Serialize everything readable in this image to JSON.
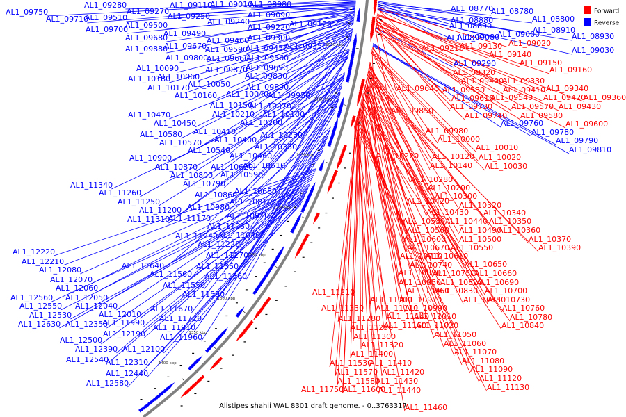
{
  "title": "Alistipes shahii WAL 8301 draft genome. - 0..3763317",
  "legend": [
    {
      "label": "Forward",
      "color": "#ff0000"
    },
    {
      "label": "Reverse",
      "color": "#0000ff"
    }
  ],
  "colors": {
    "forward": "#ff0000",
    "reverse": "#0000ff",
    "backbone": "#808080"
  },
  "ticks": [
    "1050 kbp",
    "1100 kbp",
    "1150 kbp",
    "1200 kbp",
    "1250 kbp",
    "1300 kbp",
    "1350 kbp",
    "1400 kbp"
  ],
  "reverse_labels": [
    "AL1_09750",
    "AL1_09710",
    "AL1_09280",
    "AL1_09270",
    "AL1_09110",
    "AL1_09010",
    "AL1_09510",
    "AL1_09250",
    "AL1_09240",
    "AL1_09220",
    "AL1_09090",
    "AL1_08980",
    "AL1_09120",
    "AL1_09700",
    "AL1_09500",
    "AL1_09490",
    "AL1_09300",
    "AL1_09680",
    "AL1_09460",
    "AL1_09350",
    "AL1_09880",
    "AL1_09670",
    "AL1_09590",
    "AL1_09450",
    "AL1_09800",
    "AL1_09660",
    "AL1_09560",
    "AL1_09870",
    "AL1_09690",
    "AL1_10090",
    "AL1_09830",
    "AL1_10180",
    "AL1_10060",
    "AL1_09890",
    "AL1_10170",
    "AL1_10050",
    "AL1_10040",
    "AL1_09950",
    "AL1_10160",
    "AL1_10150",
    "AL1_10070",
    "AL1_10210",
    "AL1_10100",
    "AL1_10470",
    "AL1_10200",
    "AL1_10450",
    "AL1_10410",
    "AL1_10580",
    "AL1_10230",
    "AL1_10400",
    "AL1_10570",
    "AL1_10330",
    "AL1_10540",
    "AL1_10460",
    "AL1_10900",
    "AL1_10620",
    "AL1_10510",
    "AL1_10870",
    "AL1_10800",
    "AL1_10590",
    "AL1_10790",
    "AL1_11340",
    "AL1_10680",
    "AL1_11260",
    "AL1_10860",
    "AL1_10810",
    "AL1_11250",
    "AL1_11200",
    "AL1_10980",
    "AL1_10910",
    "AL1_11310",
    "AL1_11170",
    "AL1_11030",
    "AL1_11040",
    "AL1_11240",
    "AL1_11220",
    "AL1_11270",
    "AL1_12220",
    "AL1_12210",
    "AL1_11640",
    "AL1_11350",
    "AL1_12080",
    "AL1_11560",
    "AL1_11360",
    "AL1_12070",
    "AL1_11550",
    "AL1_12060",
    "AL1_11590",
    "AL1_12050",
    "AL1_12560",
    "AL1_12040",
    "AL1_11670",
    "AL1_12550",
    "AL1_11720",
    "AL1_12530",
    "AL1_12010",
    "AL1_11990",
    "AL1_12630",
    "AL1_12350",
    "AL1_11910",
    "AL1_12190",
    "AL1_11960",
    "AL1_12500",
    "AL1_12390",
    "AL1_12100",
    "AL1_12540",
    "AL1_12310",
    "AL1_12440",
    "AL1_12580",
    "AL1_08770",
    "AL1_08880",
    "AL1_08780",
    "AL1_08890",
    "AL1_08800",
    "AL1_08990",
    "AL1_08910",
    "AL1_09080",
    "AL1_09000",
    "AL1_08930",
    "AL1_09030",
    "AL1_09290",
    "AL1_09760",
    "AL1_09780",
    "AL1_09790",
    "AL1_09810"
  ],
  "forward_labels": [
    "AL1_09020",
    "AL1_09210",
    "AL1_09130",
    "AL1_09140",
    "AL1_09150",
    "AL1_09160",
    "AL1_09320",
    "AL1_09400",
    "AL1_09330",
    "AL1_09640",
    "AL1_09530",
    "AL1_09410",
    "AL1_09340",
    "AL1_09610",
    "AL1_09540",
    "AL1_09420",
    "AL1_09360",
    "AL1_09730",
    "AL1_09570",
    "AL1_09430",
    "AL1_09850",
    "AL1_09740",
    "AL1_09580",
    "AL1_09600",
    "AL1_09980",
    "AL1_10000",
    "AL1_10010",
    "AL1_10220",
    "AL1_10120",
    "AL1_10020",
    "AL1_10140",
    "AL1_10030",
    "AL1_10280",
    "AL1_10290",
    "AL1_10300",
    "AL1_10420",
    "AL1_10320",
    "AL1_10430",
    "AL1_10340",
    "AL1_10530",
    "AL1_10440",
    "AL1_10350",
    "AL1_10560",
    "AL1_10490",
    "AL1_10360",
    "AL1_10600",
    "AL1_10500",
    "AL1_10370",
    "AL1_10670",
    "AL1_10550",
    "AL1_10390",
    "AL1_10710",
    "AL1_10610",
    "AL1_10740",
    "AL1_10650",
    "AL1_10890",
    "AL1_10750",
    "AL1_10660",
    "AL1_10950",
    "AL1_10820",
    "AL1_10690",
    "AL1_10960",
    "AL1_10830",
    "AL1_10700",
    "AL1_11210",
    "AL1_11100",
    "AL1_10970",
    "AL1_10850",
    "AL1_10730",
    "AL1_11330",
    "AL1_11110",
    "AL1_10990",
    "AL1_10760",
    "AL1_11140",
    "AL1_11010",
    "AL1_10780",
    "AL1_11280",
    "AL1_11160",
    "AL1_11020",
    "AL1_10840",
    "AL1_11290",
    "AL1_11300",
    "AL1_11050",
    "AL1_11320",
    "AL1_11060",
    "AL1_11400",
    "AL1_11070",
    "AL1_11530",
    "AL1_11410",
    "AL1_11080",
    "AL1_11570",
    "AL1_11420",
    "AL1_11090",
    "AL1_11580",
    "AL1_11430",
    "AL1_11120",
    "AL1_11750",
    "AL1_11600",
    "AL1_11440",
    "AL1_11130",
    "AL1_11460"
  ]
}
